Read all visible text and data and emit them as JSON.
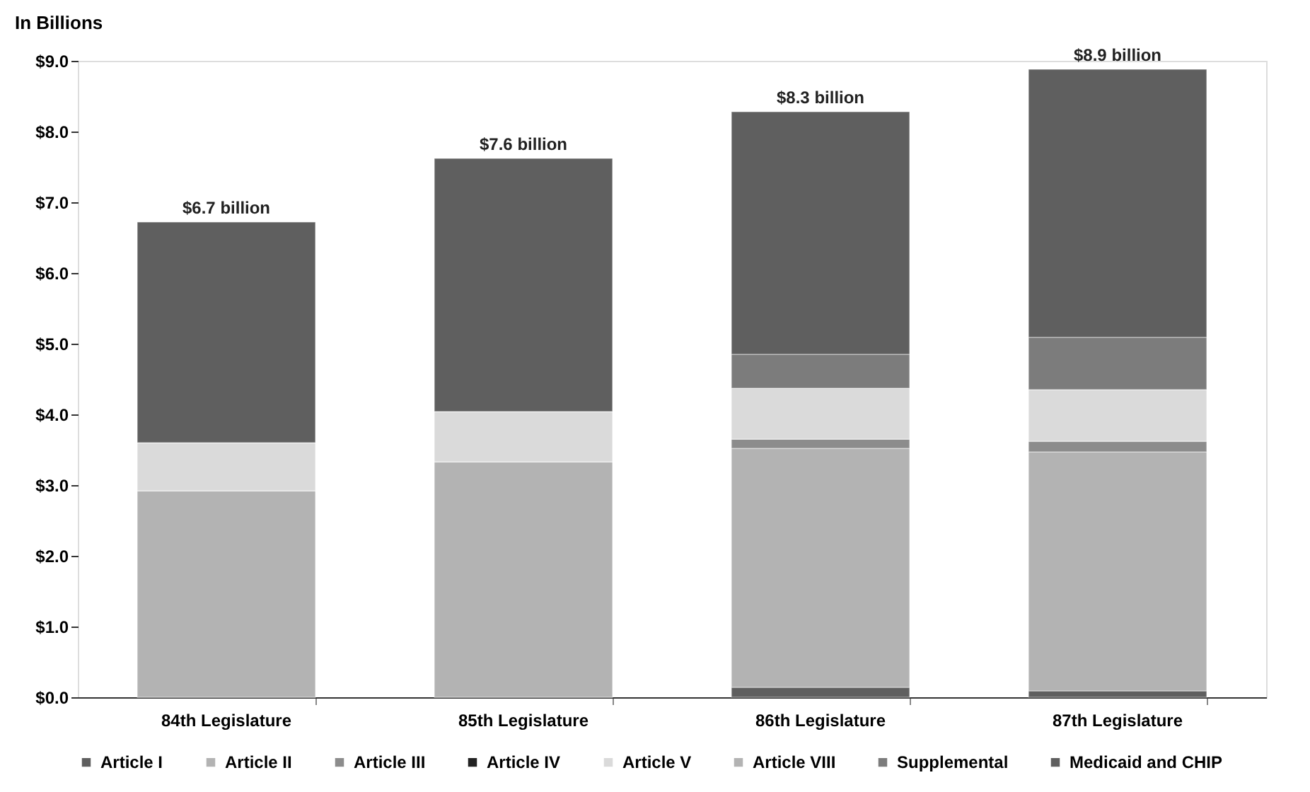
{
  "chart_data": {
    "type": "bar",
    "stacked": true,
    "ylabel": "In Billions",
    "categories": [
      "84th Legislature",
      "85th Legislature",
      "86th Legislature",
      "87th Legislature"
    ],
    "series": [
      {
        "name": "Article I",
        "color": "#5f5f5f",
        "values": [
          0,
          0,
          0.14,
          0.09
        ]
      },
      {
        "name": "Article II",
        "color": "#b3b3b3",
        "values": [
          2.92,
          3.33,
          3.38,
          3.38
        ]
      },
      {
        "name": "Article III",
        "color": "#8c8c8c",
        "values": [
          0,
          0,
          0.13,
          0.15
        ]
      },
      {
        "name": "Article IV",
        "color": "#222222",
        "values": [
          0,
          0,
          0,
          0
        ]
      },
      {
        "name": "Article V",
        "color": "#dadada",
        "values": [
          0.68,
          0.71,
          0.72,
          0.73
        ]
      },
      {
        "name": "Article VIII",
        "color": "#b3b3b3",
        "values": [
          0,
          0,
          0,
          0
        ]
      },
      {
        "name": "Supplemental",
        "color": "#7c7c7c",
        "values": [
          0,
          0,
          0.48,
          0.74
        ]
      },
      {
        "name": "Medicaid and CHIP",
        "color": "#5f5f5f",
        "values": [
          3.12,
          3.58,
          3.43,
          3.79
        ]
      }
    ],
    "totals": [
      "$6.7 billion",
      "$7.6 billion",
      "$8.3 billion",
      "$8.9 billion"
    ],
    "ylim": [
      0,
      9
    ],
    "yticks": [
      {
        "value": 0,
        "label": "$0.0"
      },
      {
        "value": 1,
        "label": "$1.0"
      },
      {
        "value": 2,
        "label": "$2.0"
      },
      {
        "value": 3,
        "label": "$3.0"
      },
      {
        "value": 4,
        "label": "$4.0"
      },
      {
        "value": 5,
        "label": "$5.0"
      },
      {
        "value": 6,
        "label": "$6.0"
      },
      {
        "value": 7,
        "label": "$7.0"
      },
      {
        "value": 8,
        "label": "$8.0"
      },
      {
        "value": 9,
        "label": "$9.0"
      }
    ],
    "grid": false,
    "legend": "bottom"
  }
}
